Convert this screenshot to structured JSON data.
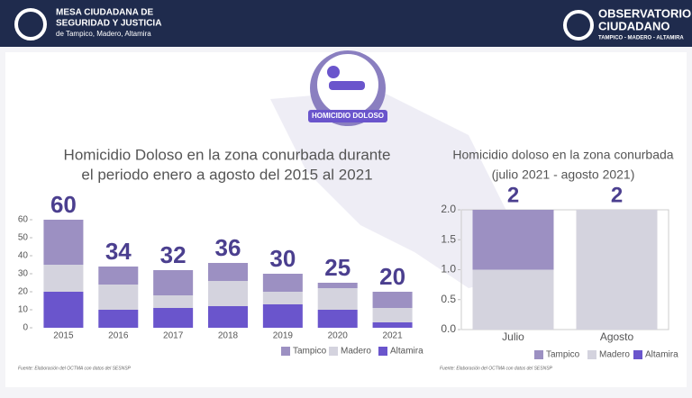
{
  "header": {
    "left_title": [
      "MESA CIUDADANA DE",
      "SEGURIDAD Y JUSTICIA"
    ],
    "left_subtitle": "de Tampico, Madero, Altamira",
    "right_title": [
      "OBSERVATORIO",
      "CIUDADANO"
    ],
    "right_subtitle": "TAMPICO - MADERO - ALTAMIRA"
  },
  "icon_label": "HOMICIDIO DOLOSO",
  "chart_data": [
    {
      "type": "stacked-bar",
      "title": [
        "Homicidio Doloso en la zona conurbada durante",
        "el periodo enero a agosto del 2015 al 2021"
      ],
      "categories": [
        "2015",
        "2016",
        "2017",
        "2018",
        "2019",
        "2020",
        "2021"
      ],
      "series": [
        {
          "name": "Tampico",
          "color": "#9c90c2",
          "values": [
            25,
            10,
            14,
            10,
            10,
            3,
            9
          ]
        },
        {
          "name": "Madero",
          "color": "#d4d3de",
          "values": [
            15,
            14,
            7,
            14,
            7,
            12,
            8
          ]
        },
        {
          "name": "Altamira",
          "color": "#6a55cc",
          "values": [
            20,
            10,
            11,
            12,
            13,
            10,
            3
          ]
        }
      ],
      "totals": [
        60,
        34,
        32,
        36,
        30,
        25,
        20
      ],
      "ylim": [
        0,
        60
      ],
      "yticks": [
        0,
        10,
        20,
        30,
        40,
        50,
        60
      ],
      "frame": false,
      "source": "Fuente: Elaboración del OCTMA con datos del SESNSP"
    },
    {
      "type": "stacked-bar",
      "title": [
        "Homicidio doloso en la zona conurbada",
        "(julio 2021 - agosto 2021)"
      ],
      "categories": [
        "Julio",
        "Agosto"
      ],
      "series": [
        {
          "name": "Tampico",
          "color": "#9c90c2",
          "values": [
            1,
            0
          ]
        },
        {
          "name": "Madero",
          "color": "#d4d3de",
          "values": [
            1,
            2
          ]
        },
        {
          "name": "Altamira",
          "color": "#6a55cc",
          "values": [
            0,
            0
          ]
        }
      ],
      "totals": [
        2,
        2
      ],
      "ylim": [
        0,
        2
      ],
      "yticks": [
        {
          "value": 0,
          "label": "0.0"
        },
        {
          "value": 0.5,
          "label": "0.5"
        },
        {
          "value": 1,
          "label": "1.0"
        },
        {
          "value": 1.5,
          "label": "1.5"
        },
        {
          "value": 2,
          "label": "2.0"
        }
      ],
      "frame": true,
      "source": "Fuente: Elaboración del OCTMA con datos del SESNSP"
    }
  ]
}
